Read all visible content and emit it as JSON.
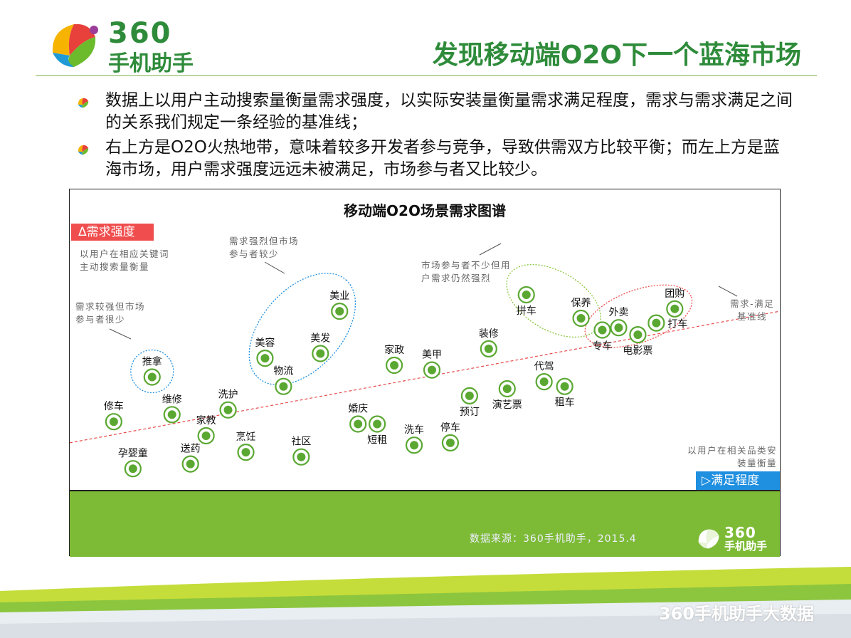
{
  "logo": {
    "brand_num": "360",
    "brand_cn": "手机助手"
  },
  "page_title": "发现移动端O2O下一个蓝海市场",
  "bullets": [
    "数据上以用户主动搜索量衡量需求强度，以实际安装量衡量需求满足程度，需求与需求满足之间的关系我们规定一条经验的基准线；",
    "右上方是O2O火热地带，意味着较多开发者参与竞争，导致供需双方比较平衡；而左上方是蓝海市场，用户需求强度远远未被满足，市场参与者又比较少。"
  ],
  "chart_data": {
    "type": "scatter",
    "title": "移动端O2O场景需求图谱",
    "ylabel": "Δ需求强度",
    "ylabel_note": "以用户在相应关键词主动搜索量衡量",
    "xlabel": "▷满足程度",
    "xlabel_note": "以用户在相关品类安装量衡量",
    "xlim": [
      0,
      100
    ],
    "ylim": [
      0,
      100
    ],
    "baseline": {
      "label": "需求-满足基准线",
      "from": [
        0,
        17
      ],
      "to": [
        100,
        73
      ]
    },
    "points": [
      {
        "name": "推拿",
        "x": 11.6,
        "y": 45
      },
      {
        "name": "修车",
        "x": 6.2,
        "y": 26
      },
      {
        "name": "孕婴童",
        "x": 8.9,
        "y": 6
      },
      {
        "name": "维修",
        "x": 14.4,
        "y": 29
      },
      {
        "name": "送药",
        "x": 17.0,
        "y": 8
      },
      {
        "name": "家教",
        "x": 19.2,
        "y": 20
      },
      {
        "name": "洗护",
        "x": 22.3,
        "y": 31
      },
      {
        "name": "烹饪",
        "x": 24.8,
        "y": 13
      },
      {
        "name": "美容",
        "x": 27.5,
        "y": 53
      },
      {
        "name": "物流",
        "x": 30.1,
        "y": 41
      },
      {
        "name": "社区",
        "x": 32.6,
        "y": 11
      },
      {
        "name": "美业",
        "x": 38.0,
        "y": 73
      },
      {
        "name": "美发",
        "x": 35.3,
        "y": 55
      },
      {
        "name": "婚庆",
        "x": 40.6,
        "y": 25
      },
      {
        "name": "短租",
        "x": 43.3,
        "y": 25
      },
      {
        "name": "家政",
        "x": 45.7,
        "y": 50
      },
      {
        "name": "洗车",
        "x": 48.5,
        "y": 16
      },
      {
        "name": "美甲",
        "x": 51.0,
        "y": 48
      },
      {
        "name": "停车",
        "x": 53.6,
        "y": 17
      },
      {
        "name": "预订",
        "x": 56.3,
        "y": 37
      },
      {
        "name": "装修",
        "x": 59.0,
        "y": 57
      },
      {
        "name": "演艺票",
        "x": 61.6,
        "y": 40
      },
      {
        "name": "拼车",
        "x": 64.3,
        "y": 80
      },
      {
        "name": "代驾",
        "x": 66.8,
        "y": 43
      },
      {
        "name": "租车",
        "x": 69.7,
        "y": 41
      },
      {
        "name": "保养",
        "x": 72.0,
        "y": 70
      },
      {
        "name": "专车",
        "x": 75.0,
        "y": 65
      },
      {
        "name": "外卖",
        "x": 77.3,
        "y": 66
      },
      {
        "name": "电影票",
        "x": 80.0,
        "y": 63
      },
      {
        "name": "打车",
        "x": 82.6,
        "y": 68
      },
      {
        "name": "团购",
        "x": 85.2,
        "y": 74
      }
    ],
    "annotations": [
      {
        "text": "需求较强但市场参与者很少"
      },
      {
        "text": "需求强烈但市场参与者较少"
      },
      {
        "text": "市场参与者不少但用户需求仍然强烈"
      }
    ],
    "source": "数据来源：360手机助手，2015.4"
  },
  "footer": {
    "text": "360手机助手大数据"
  },
  "colors": {
    "brand_green": "#2e8b3a",
    "point_green": "#5aa832",
    "band_green": "#7dbb36",
    "red": "#f04e4e",
    "blue": "#1f8fe0"
  }
}
